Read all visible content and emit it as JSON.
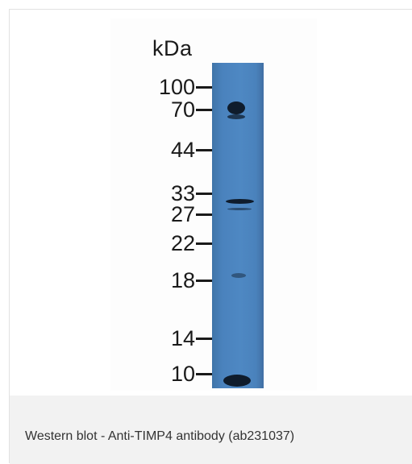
{
  "figure": {
    "unit_label": "kDa",
    "markers": [
      "100",
      "70",
      "44",
      "33",
      "27",
      "22",
      "18",
      "14",
      "10"
    ],
    "lane_color": "#4a82bd",
    "band_color": "#0f1c2c"
  },
  "caption": {
    "text": "Western blot - Anti-TIMP4 antibody (ab231037)"
  }
}
